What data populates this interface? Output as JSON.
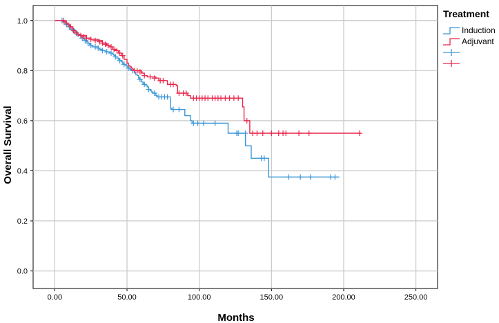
{
  "chart_data": {
    "type": "line",
    "subtype": "kaplan-meier",
    "xlabel": "Months",
    "ylabel": "Overall Survival",
    "xlim": [
      -15,
      265
    ],
    "ylim": [
      -0.07,
      1.06
    ],
    "x_ticks": [
      0,
      50,
      100,
      150,
      200,
      250
    ],
    "x_tick_labels": [
      "0.00",
      "50.00",
      "100.00",
      "150.00",
      "200.00",
      "250.00"
    ],
    "y_ticks": [
      0,
      0.2,
      0.4,
      0.6,
      0.8,
      1.0
    ],
    "y_tick_labels": [
      "0.0",
      "0.2",
      "0.4",
      "0.6",
      "0.8",
      "1.0"
    ],
    "grid": true,
    "legend": {
      "title": "Treatment",
      "position": "right",
      "entries": [
        {
          "label": "Induction",
          "color": "#3a96d8",
          "kind": "line"
        },
        {
          "label": "Adjuvant",
          "color": "#e8274b",
          "kind": "line"
        },
        {
          "label": "",
          "color": "#3a96d8",
          "kind": "censor"
        },
        {
          "label": "",
          "color": "#e8274b",
          "kind": "censor"
        }
      ]
    },
    "series": [
      {
        "name": "Induction",
        "color": "#3a96d8",
        "steps": [
          [
            0,
            1.0
          ],
          [
            5,
            0.995
          ],
          [
            7,
            0.99
          ],
          [
            8,
            0.985
          ],
          [
            9,
            0.98
          ],
          [
            10,
            0.975
          ],
          [
            11,
            0.97
          ],
          [
            12,
            0.965
          ],
          [
            13,
            0.96
          ],
          [
            14,
            0.955
          ],
          [
            15,
            0.945
          ],
          [
            17,
            0.94
          ],
          [
            18,
            0.935
          ],
          [
            19,
            0.93
          ],
          [
            20,
            0.925
          ],
          [
            21,
            0.92
          ],
          [
            22,
            0.915
          ],
          [
            23,
            0.91
          ],
          [
            24,
            0.905
          ],
          [
            25,
            0.9
          ],
          [
            26,
            0.895
          ],
          [
            30,
            0.89
          ],
          [
            31,
            0.885
          ],
          [
            33,
            0.88
          ],
          [
            35,
            0.875
          ],
          [
            38,
            0.87
          ],
          [
            40,
            0.865
          ],
          [
            41,
            0.86
          ],
          [
            42,
            0.855
          ],
          [
            43,
            0.85
          ],
          [
            44,
            0.845
          ],
          [
            45,
            0.84
          ],
          [
            46,
            0.835
          ],
          [
            47,
            0.83
          ],
          [
            48,
            0.825
          ],
          [
            49,
            0.82
          ],
          [
            50,
            0.815
          ],
          [
            51,
            0.81
          ],
          [
            52,
            0.805
          ],
          [
            53,
            0.8
          ],
          [
            55,
            0.795
          ],
          [
            56,
            0.785
          ],
          [
            57,
            0.78
          ],
          [
            58,
            0.77
          ],
          [
            59,
            0.765
          ],
          [
            60,
            0.755
          ],
          [
            61,
            0.75
          ],
          [
            62,
            0.745
          ],
          [
            63,
            0.74
          ],
          [
            64,
            0.735
          ],
          [
            65,
            0.725
          ],
          [
            66,
            0.72
          ],
          [
            67,
            0.715
          ],
          [
            68,
            0.71
          ],
          [
            70,
            0.7
          ],
          [
            71,
            0.695
          ],
          [
            80,
            0.65
          ],
          [
            81,
            0.645
          ],
          [
            90,
            0.62
          ],
          [
            94,
            0.6
          ],
          [
            95,
            0.59
          ],
          [
            120,
            0.55
          ],
          [
            130,
            0.55
          ],
          [
            132,
            0.5
          ],
          [
            136,
            0.45
          ],
          [
            148,
            0.375
          ]
        ],
        "end_x": 197,
        "censors": [
          [
            5,
            1.0
          ],
          [
            8,
            0.985
          ],
          [
            10,
            0.975
          ],
          [
            12,
            0.965
          ],
          [
            14,
            0.955
          ],
          [
            16,
            0.945
          ],
          [
            19,
            0.93
          ],
          [
            21,
            0.92
          ],
          [
            23,
            0.91
          ],
          [
            25,
            0.9
          ],
          [
            28,
            0.895
          ],
          [
            30,
            0.89
          ],
          [
            33,
            0.88
          ],
          [
            36,
            0.875
          ],
          [
            39,
            0.87
          ],
          [
            42,
            0.855
          ],
          [
            45,
            0.84
          ],
          [
            48,
            0.825
          ],
          [
            51,
            0.81
          ],
          [
            54,
            0.8
          ],
          [
            59,
            0.765
          ],
          [
            62,
            0.745
          ],
          [
            65,
            0.725
          ],
          [
            69,
            0.71
          ],
          [
            72,
            0.695
          ],
          [
            74,
            0.695
          ],
          [
            76,
            0.695
          ],
          [
            78,
            0.695
          ],
          [
            82,
            0.645
          ],
          [
            86,
            0.645
          ],
          [
            96,
            0.59
          ],
          [
            99,
            0.59
          ],
          [
            103,
            0.59
          ],
          [
            111,
            0.59
          ],
          [
            126,
            0.55
          ],
          [
            127,
            0.55
          ],
          [
            132,
            0.55
          ],
          [
            143,
            0.45
          ],
          [
            145,
            0.45
          ],
          [
            162,
            0.375
          ],
          [
            170,
            0.375
          ],
          [
            177,
            0.375
          ],
          [
            191,
            0.375
          ],
          [
            194,
            0.375
          ]
        ]
      },
      {
        "name": "Adjuvant",
        "color": "#e8274b",
        "steps": [
          [
            0,
            1.0
          ],
          [
            6,
            0.995
          ],
          [
            8,
            0.99
          ],
          [
            9,
            0.985
          ],
          [
            10,
            0.98
          ],
          [
            11,
            0.975
          ],
          [
            12,
            0.97
          ],
          [
            13,
            0.96
          ],
          [
            14,
            0.955
          ],
          [
            15,
            0.95
          ],
          [
            16,
            0.945
          ],
          [
            18,
            0.94
          ],
          [
            22,
            0.93
          ],
          [
            25,
            0.925
          ],
          [
            30,
            0.92
          ],
          [
            33,
            0.91
          ],
          [
            36,
            0.9
          ],
          [
            38,
            0.895
          ],
          [
            40,
            0.885
          ],
          [
            42,
            0.88
          ],
          [
            44,
            0.87
          ],
          [
            46,
            0.86
          ],
          [
            48,
            0.845
          ],
          [
            50,
            0.83
          ],
          [
            51,
            0.82
          ],
          [
            52,
            0.815
          ],
          [
            53,
            0.81
          ],
          [
            54,
            0.805
          ],
          [
            55,
            0.8
          ],
          [
            60,
            0.79
          ],
          [
            62,
            0.78
          ],
          [
            64,
            0.775
          ],
          [
            70,
            0.77
          ],
          [
            72,
            0.76
          ],
          [
            78,
            0.745
          ],
          [
            84,
            0.74
          ],
          [
            85,
            0.71
          ],
          [
            92,
            0.7
          ],
          [
            94,
            0.69
          ],
          [
            130,
            0.655
          ],
          [
            131,
            0.6
          ],
          [
            135,
            0.55
          ]
        ],
        "end_x": 212,
        "censors": [
          [
            6,
            1.0
          ],
          [
            8,
            0.99
          ],
          [
            11,
            0.975
          ],
          [
            13,
            0.96
          ],
          [
            15,
            0.95
          ],
          [
            18,
            0.94
          ],
          [
            20,
            0.935
          ],
          [
            22,
            0.93
          ],
          [
            25,
            0.925
          ],
          [
            28,
            0.92
          ],
          [
            31,
            0.915
          ],
          [
            33,
            0.91
          ],
          [
            35,
            0.905
          ],
          [
            37,
            0.9
          ],
          [
            39,
            0.895
          ],
          [
            41,
            0.885
          ],
          [
            43,
            0.88
          ],
          [
            45,
            0.87
          ],
          [
            47,
            0.86
          ],
          [
            55,
            0.8
          ],
          [
            57,
            0.8
          ],
          [
            59,
            0.795
          ],
          [
            62,
            0.78
          ],
          [
            66,
            0.775
          ],
          [
            69,
            0.77
          ],
          [
            73,
            0.76
          ],
          [
            75,
            0.76
          ],
          [
            80,
            0.745
          ],
          [
            82,
            0.745
          ],
          [
            86,
            0.71
          ],
          [
            89,
            0.71
          ],
          [
            91,
            0.71
          ],
          [
            96,
            0.69
          ],
          [
            98,
            0.69
          ],
          [
            100,
            0.69
          ],
          [
            102,
            0.69
          ],
          [
            104,
            0.69
          ],
          [
            106,
            0.69
          ],
          [
            109,
            0.69
          ],
          [
            111,
            0.69
          ],
          [
            113,
            0.69
          ],
          [
            115,
            0.69
          ],
          [
            118,
            0.69
          ],
          [
            121,
            0.69
          ],
          [
            124,
            0.69
          ],
          [
            127,
            0.69
          ],
          [
            133,
            0.6
          ],
          [
            137,
            0.55
          ],
          [
            140,
            0.55
          ],
          [
            144,
            0.55
          ],
          [
            150,
            0.55
          ],
          [
            155,
            0.55
          ],
          [
            158,
            0.55
          ],
          [
            160,
            0.55
          ],
          [
            169,
            0.55
          ],
          [
            176,
            0.55
          ],
          [
            211,
            0.55
          ]
        ]
      }
    ]
  }
}
